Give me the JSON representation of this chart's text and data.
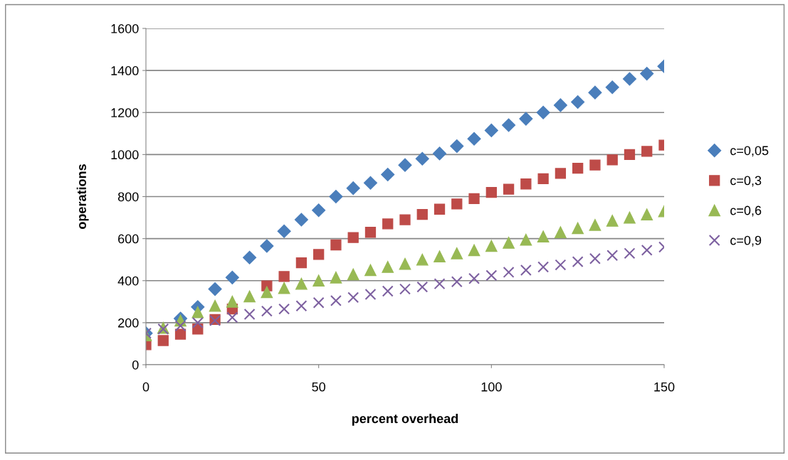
{
  "chart_data": {
    "type": "scatter",
    "xlabel": "percent overhead",
    "ylabel": "operations",
    "x": [
      0,
      5,
      10,
      15,
      20,
      25,
      30,
      35,
      40,
      45,
      50,
      55,
      60,
      65,
      70,
      75,
      80,
      85,
      90,
      95,
      100,
      105,
      110,
      115,
      120,
      125,
      130,
      135,
      140,
      145,
      150
    ],
    "xlim": [
      0,
      150
    ],
    "xticks": [
      0,
      50,
      100,
      150
    ],
    "ylim": [
      0,
      1600
    ],
    "yticks": [
      0,
      200,
      400,
      600,
      800,
      1000,
      1200,
      1400,
      1600
    ],
    "grid": "y",
    "legend": "right",
    "series": [
      {
        "name": "c=0,05",
        "color": "#4a7ebb",
        "marker": "diamond",
        "values": [
          150,
          null,
          220,
          275,
          360,
          415,
          510,
          565,
          635,
          690,
          735,
          800,
          840,
          865,
          905,
          950,
          980,
          1005,
          1040,
          1075,
          1115,
          1140,
          1170,
          1200,
          1235,
          1250,
          1295,
          1320,
          1360,
          1385,
          1420
        ]
      },
      {
        "name": "c=0,3",
        "color": "#be4b48",
        "marker": "square",
        "values": [
          95,
          115,
          145,
          170,
          215,
          265,
          null,
          375,
          420,
          485,
          525,
          570,
          605,
          630,
          670,
          690,
          715,
          740,
          765,
          790,
          820,
          835,
          860,
          885,
          910,
          935,
          950,
          975,
          1000,
          1015,
          1045
        ]
      },
      {
        "name": "c=0,6",
        "color": "#98b954",
        "marker": "triangle",
        "values": [
          140,
          175,
          210,
          250,
          280,
          300,
          325,
          345,
          365,
          385,
          400,
          415,
          430,
          450,
          465,
          480,
          500,
          515,
          530,
          545,
          565,
          580,
          595,
          610,
          630,
          650,
          665,
          685,
          700,
          715,
          730
        ]
      },
      {
        "name": "c=0,9",
        "color": "#7d60a0",
        "marker": "cross",
        "values": [
          150,
          170,
          185,
          200,
          210,
          225,
          240,
          255,
          265,
          280,
          295,
          305,
          320,
          335,
          350,
          360,
          370,
          385,
          395,
          410,
          425,
          440,
          450,
          465,
          475,
          490,
          505,
          520,
          530,
          545,
          560
        ]
      }
    ]
  }
}
